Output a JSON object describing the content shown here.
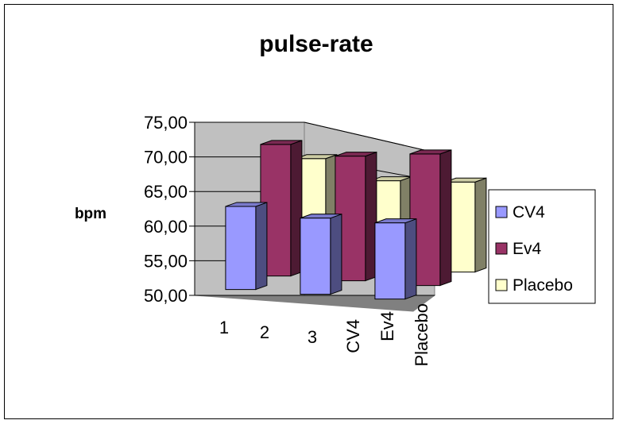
{
  "chart_data": {
    "type": "bar",
    "title": "pulse-rate",
    "ylabel": "bpm",
    "xlabel": "",
    "ylim": [
      50,
      75
    ],
    "y_ticks": [
      "50,00",
      "55,00",
      "60,00",
      "65,00",
      "70,00",
      "75,00"
    ],
    "y_tick_values": [
      50,
      55,
      60,
      65,
      70,
      75
    ],
    "categories": [
      "1",
      "2",
      "3"
    ],
    "depth_categories": [
      "CV4",
      "Ev4",
      "Placebo"
    ],
    "series": [
      {
        "name": "CV4",
        "color": "#9999ff",
        "values": [
          62.0,
          61.0,
          61.0
        ]
      },
      {
        "name": "Ev4",
        "color": "#993366",
        "values": [
          69.0,
          68.0,
          69.0
        ]
      },
      {
        "name": "Placebo",
        "color": "#ffffcc",
        "values": [
          65.0,
          62.5,
          63.0
        ]
      }
    ],
    "legend_position": "right",
    "grid": true,
    "three_d": true
  }
}
